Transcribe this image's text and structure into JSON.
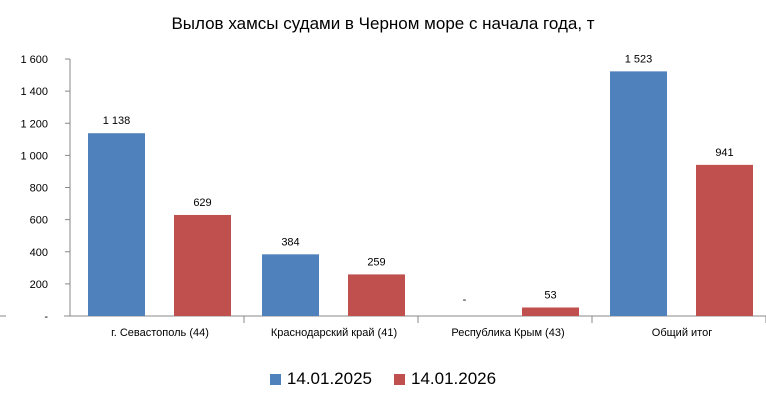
{
  "chart_data": {
    "type": "bar",
    "title": "Вылов хамсы судами в Черном море с начала  года, т",
    "categories": [
      "г. Севастополь (44)",
      "Краснодарский край (41)",
      "Республика Крым (43)",
      "Общий итог"
    ],
    "series": [
      {
        "name": "14.01.2025",
        "color": "#4F81BD",
        "values": [
          1138,
          384,
          null,
          1523
        ],
        "labels": [
          "1 138",
          "384",
          "-",
          "1 523"
        ]
      },
      {
        "name": "14.01.2026",
        "color": "#C0504D",
        "values": [
          629,
          259,
          53,
          941
        ],
        "labels": [
          "629",
          "259",
          "53",
          "941"
        ]
      }
    ],
    "ylim": [
      0,
      1600
    ],
    "yticks": [
      0,
      200,
      400,
      600,
      800,
      1000,
      1200,
      1400,
      1600
    ],
    "ytick_labels": [
      "-",
      "200",
      "400",
      "600",
      "800",
      "1 000",
      "1 200",
      "1 400",
      "1 600"
    ],
    "grid": false,
    "legend_position": "bottom"
  }
}
